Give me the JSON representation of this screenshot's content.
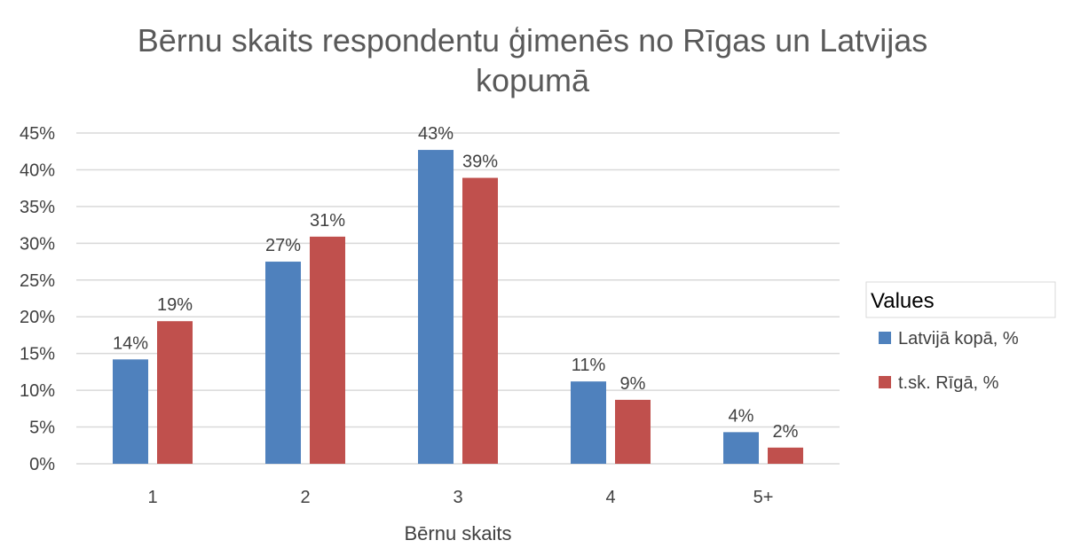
{
  "chart_data": {
    "type": "bar",
    "title": "Bērnu skaits respondentu ģimenēs no Rīgas un Latvijas kopumā",
    "title_lines": [
      "Bērnu skaits respondentu ģimenēs no Rīgas un Latvijas",
      "kopumā"
    ],
    "xlabel": "Bērnu skaits",
    "ylabel": "",
    "categories": [
      "1",
      "2",
      "3",
      "4",
      "5+"
    ],
    "ylim": [
      0,
      45
    ],
    "yticks": [
      0,
      5,
      10,
      15,
      20,
      25,
      30,
      35,
      40,
      45
    ],
    "ytick_labels": [
      "0%",
      "5%",
      "10%",
      "15%",
      "20%",
      "25%",
      "30%",
      "35%",
      "40%",
      "45%"
    ],
    "grid": true,
    "legend": {
      "title": "Values",
      "placement": "right"
    },
    "series": [
      {
        "name": "Latvijā kopā, %",
        "color": "#4f81bd",
        "values": [
          14.2,
          27.5,
          42.7,
          11.2,
          4.3
        ],
        "labels": [
          "14%",
          "27%",
          "43%",
          "11%",
          "4%"
        ]
      },
      {
        "name": "t.sk. Rīgā, %",
        "color": "#c0504d",
        "values": [
          19.4,
          30.9,
          38.9,
          8.7,
          2.2
        ],
        "labels": [
          "19%",
          "31%",
          "39%",
          "9%",
          "2%"
        ]
      }
    ]
  }
}
